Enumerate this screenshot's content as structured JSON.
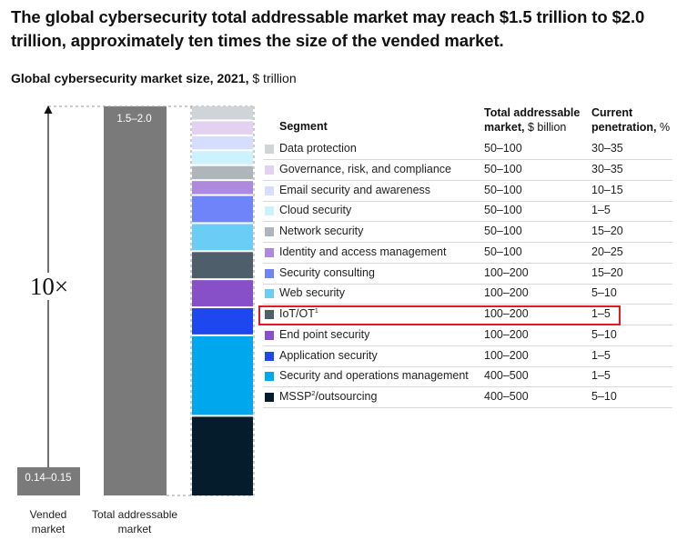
{
  "headline": "The global cybersecurity total addressable market may reach $1.5 trillion to $2.0 trillion, approximately ten times the size of the vended market.",
  "subtitle": {
    "bold": "Global cybersecurity market size, 2021,",
    "unit": " $ trillion"
  },
  "multiplier_label": "10×",
  "table_headers": {
    "segment": "Segment",
    "tam_line1": "Total addressable",
    "tam_line2_bold": "market,",
    "tam_line2_unit": " $ billion",
    "pen_line1": "Current",
    "pen_line2_bold": "penetration,",
    "pen_line2_unit": " %"
  },
  "highlighted_segment": "IoT/OT",
  "chart_data": {
    "type": "bar",
    "title": "Global cybersecurity market size, 2021, $ trillion",
    "categories": [
      "Vended market",
      "Total addressable market"
    ],
    "category_lines": [
      [
        "Vended",
        "market"
      ],
      [
        "Total addressable",
        "market"
      ]
    ],
    "value_labels": [
      "0.14–0.15",
      "1.5–2.0"
    ],
    "ranges": [
      [
        0.14,
        0.15
      ],
      [
        1.5,
        2.0
      ]
    ],
    "colors": {
      "vended": "#7a7a7a",
      "tam": "#7a7a7a"
    },
    "segments": [
      {
        "name": "Data protection",
        "sup": "",
        "tam": "50–100",
        "pen": "30–35",
        "weight": 75,
        "color": "#cfd4d8"
      },
      {
        "name": "Governance, risk, and compliance",
        "sup": "",
        "tam": "50–100",
        "pen": "30–35",
        "weight": 75,
        "color": "#e2d1f0"
      },
      {
        "name": "Email security and awareness",
        "sup": "",
        "tam": "50–100",
        "pen": "10–15",
        "weight": 75,
        "color": "#d4dfff"
      },
      {
        "name": "Cloud security",
        "sup": "",
        "tam": "50–100",
        "pen": "1–5",
        "weight": 75,
        "color": "#ccf1ff"
      },
      {
        "name": "Network security",
        "sup": "",
        "tam": "50–100",
        "pen": "15–20",
        "weight": 75,
        "color": "#aeb5bb"
      },
      {
        "name": "Identity and access management",
        "sup": "",
        "tam": "50–100",
        "pen": "20–25",
        "weight": 75,
        "color": "#ad8ade"
      },
      {
        "name": "Security consulting",
        "sup": "",
        "tam": "100–200",
        "pen": "15–20",
        "weight": 150,
        "color": "#6e84f8"
      },
      {
        "name": "Web security",
        "sup": "",
        "tam": "100–200",
        "pen": "5–10",
        "weight": 150,
        "color": "#6acdf6"
      },
      {
        "name": "IoT/OT",
        "sup": "1",
        "tam": "100–200",
        "pen": "1–5",
        "weight": 150,
        "color": "#4e5e6a"
      },
      {
        "name": "End point security",
        "sup": "",
        "tam": "100–200",
        "pen": "5–10",
        "weight": 150,
        "color": "#8750c8"
      },
      {
        "name": "Application security",
        "sup": "",
        "tam": "100–200",
        "pen": "1–5",
        "weight": 150,
        "color": "#1f47f0"
      },
      {
        "name": "Security and operations management",
        "sup": "",
        "tam": "400–500",
        "pen": "1–5",
        "weight": 450,
        "color": "#00a7ec"
      },
      {
        "name": "MSSP",
        "sup": "2",
        "name_suffix": "/outsourcing",
        "tam": "400–500",
        "pen": "5–10",
        "weight": 450,
        "color": "#051c2c"
      }
    ]
  }
}
